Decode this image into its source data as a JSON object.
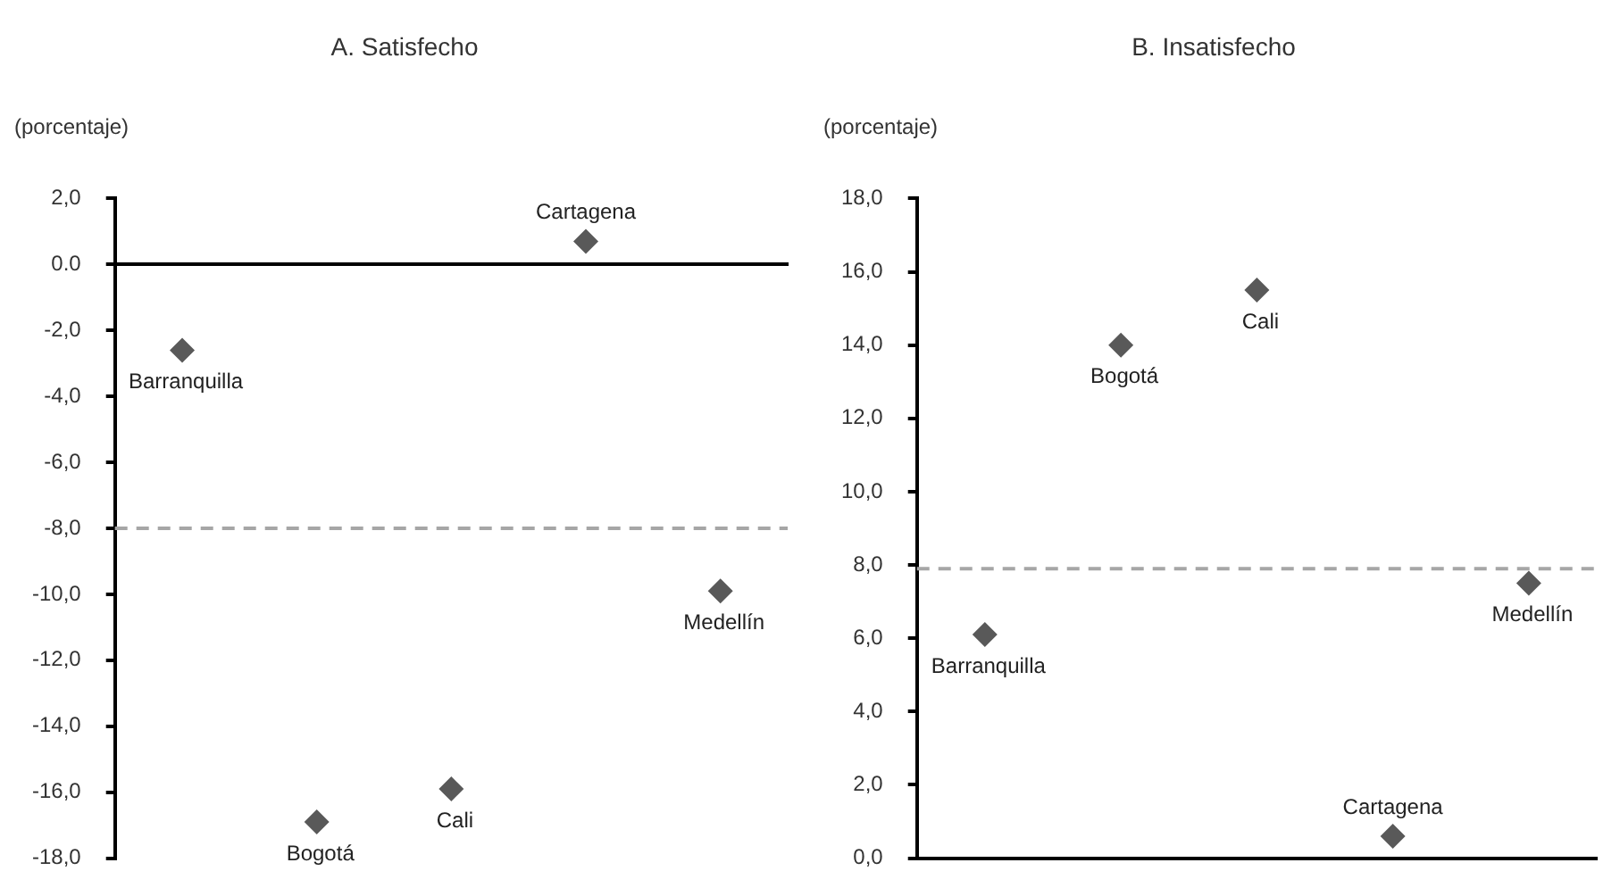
{
  "chart_data": [
    {
      "type": "scatter",
      "title": "A. Satisfecho",
      "ylabel": "(porcentaje)",
      "categories": [
        null,
        null,
        null,
        null,
        null
      ],
      "marker": "diamond",
      "grid": false,
      "legend": false,
      "tick_labels": "y",
      "ylim": [
        -18,
        2
      ],
      "yticks": [
        {
          "value": 2,
          "label": "2,0"
        },
        {
          "value": 0,
          "label": "0.0"
        },
        {
          "value": -2,
          "label": "-2,0"
        },
        {
          "value": -4,
          "label": "-4,0"
        },
        {
          "value": -6,
          "label": "-6,0"
        },
        {
          "value": -8,
          "label": "-8,0"
        },
        {
          "value": -10,
          "label": "-10,0"
        },
        {
          "value": -12,
          "label": "-12,0"
        },
        {
          "value": -14,
          "label": "-14,0"
        },
        {
          "value": -16,
          "label": "-16,0"
        },
        {
          "value": -18,
          "label": "-18,0"
        }
      ],
      "ref_lines": [
        {
          "axis": "y",
          "value": -8,
          "color": "#a6a6a6",
          "line_style": "dashed"
        }
      ],
      "series": [
        {
          "name": "Barranquilla",
          "color": "#595959",
          "values": [
            -2.6,
            null,
            null,
            null,
            null
          ]
        },
        {
          "name": "Bogotá",
          "color": "#595959",
          "values": [
            null,
            -16.9,
            null,
            null,
            null
          ]
        },
        {
          "name": "Cali",
          "color": "#595959",
          "values": [
            null,
            null,
            -15.9,
            null,
            null
          ]
        },
        {
          "name": "Cartagena",
          "color": "#595959",
          "values": [
            null,
            null,
            null,
            0.7,
            null
          ]
        },
        {
          "name": "Medellín",
          "color": "#595959",
          "values": [
            null,
            null,
            null,
            null,
            -9.9
          ]
        }
      ]
    },
    {
      "type": "scatter",
      "title": "B. Insatisfecho",
      "ylabel": "(porcentaje)",
      "categories": [
        null,
        null,
        null,
        null,
        null
      ],
      "marker": "diamond",
      "grid": false,
      "legend": false,
      "tick_labels": "y",
      "ylim": [
        0,
        18
      ],
      "yticks": [
        {
          "value": 18,
          "label": "18,0"
        },
        {
          "value": 16,
          "label": "16,0"
        },
        {
          "value": 14,
          "label": "14,0"
        },
        {
          "value": 12,
          "label": "12,0"
        },
        {
          "value": 10,
          "label": "10,0"
        },
        {
          "value": 8,
          "label": "8,0"
        },
        {
          "value": 6,
          "label": "6,0"
        },
        {
          "value": 4,
          "label": "4,0"
        },
        {
          "value": 2,
          "label": "2,0"
        },
        {
          "value": 0,
          "label": "0,0"
        }
      ],
      "ref_lines": [
        {
          "axis": "y",
          "value": 7.9,
          "color": "#a6a6a6",
          "line_style": "dashed"
        }
      ],
      "series": [
        {
          "name": "Barranquilla",
          "color": "#595959",
          "values": [
            6.1,
            null,
            null,
            null,
            null
          ]
        },
        {
          "name": "Bogotá",
          "color": "#595959",
          "values": [
            null,
            14.0,
            null,
            null,
            null
          ]
        },
        {
          "name": "Cali",
          "color": "#595959",
          "values": [
            null,
            null,
            15.5,
            null,
            null
          ]
        },
        {
          "name": "Cartagena",
          "color": "#595959",
          "values": [
            null,
            null,
            null,
            0.6,
            null
          ]
        },
        {
          "name": "Medellín",
          "color": "#595959",
          "values": [
            null,
            null,
            null,
            null,
            7.5
          ]
        }
      ]
    }
  ]
}
